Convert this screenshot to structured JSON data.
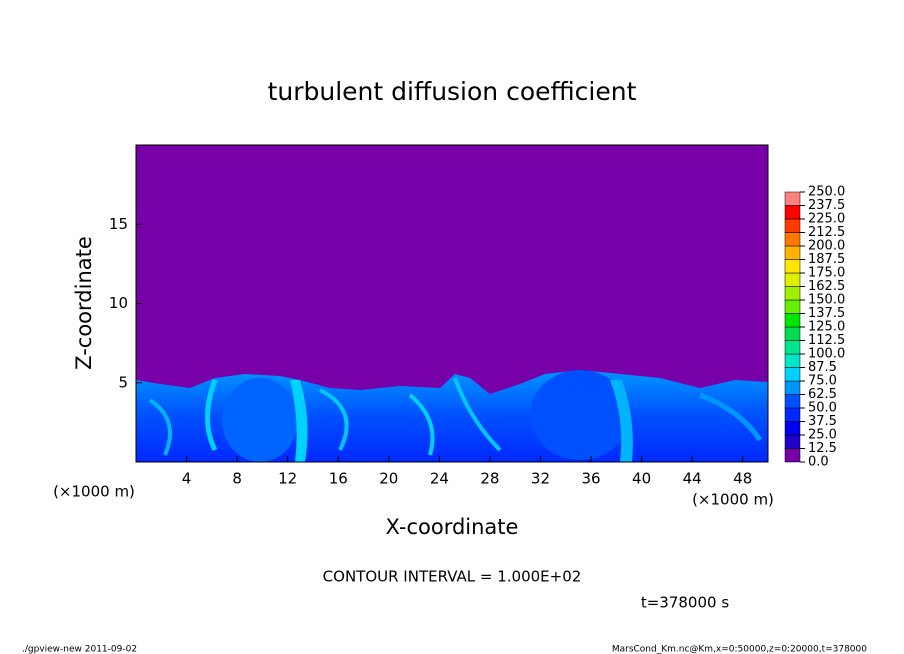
{
  "chart_data": {
    "type": "heatmap",
    "title": "turbulent diffusion coefficient",
    "x_label": "X-coordinate",
    "y_label": "Z-coordinate",
    "x_unit": "(×1000 m)",
    "y_unit": "(×1000 m)",
    "xlim": [
      0,
      50
    ],
    "ylim": [
      0,
      20
    ],
    "xticks": [
      4,
      8,
      12,
      16,
      20,
      24,
      28,
      32,
      36,
      40,
      44,
      48
    ],
    "yticks": [
      5,
      10,
      15
    ],
    "colorbar": {
      "levels": [
        {
          "value": 0,
          "label": "0.0"
        },
        {
          "value": 12.5,
          "label": "12.5"
        },
        {
          "value": 25,
          "label": "25.0"
        },
        {
          "value": 37.5,
          "label": "37.5"
        },
        {
          "value": 50,
          "label": "50.0"
        },
        {
          "value": 62.5,
          "label": "62.5"
        },
        {
          "value": 75,
          "label": "75.0"
        },
        {
          "value": 87.5,
          "label": "87.5"
        },
        {
          "value": 100,
          "label": "100.0"
        },
        {
          "value": 112.5,
          "label": "112.5"
        },
        {
          "value": 125,
          "label": "125.0"
        },
        {
          "value": 137.5,
          "label": "137.5"
        },
        {
          "value": 150,
          "label": "150.0"
        },
        {
          "value": 162.5,
          "label": "162.5"
        },
        {
          "value": 175,
          "label": "175.0"
        },
        {
          "value": 187.5,
          "label": "187.5"
        },
        {
          "value": 200,
          "label": "200.0"
        },
        {
          "value": 212.5,
          "label": "212.5"
        },
        {
          "value": 225,
          "label": "225.0"
        },
        {
          "value": 237.5,
          "label": "237.5"
        },
        {
          "value": 250,
          "label": "250.0"
        }
      ],
      "colors": [
        "#7800a8",
        "#1e00c8",
        "#0000f0",
        "#0028ff",
        "#0050ff",
        "#0096ff",
        "#00d2ff",
        "#00e6c8",
        "#00e68c",
        "#00dc50",
        "#00e600",
        "#64f000",
        "#a0f000",
        "#dcf000",
        "#ffe600",
        "#ffb400",
        "#ff7800",
        "#ff3c00",
        "#ff0000",
        "#ff8080"
      ]
    },
    "contour_note": "CONTOUR INTERVAL = 1.000E+02",
    "time_note": "t=378000 s",
    "footer_left": "./gpview-new  2011-09-02",
    "footer_right": "MarsCond_Km.nc@Km,x=0:50000,z=0:20000,t=378000"
  }
}
